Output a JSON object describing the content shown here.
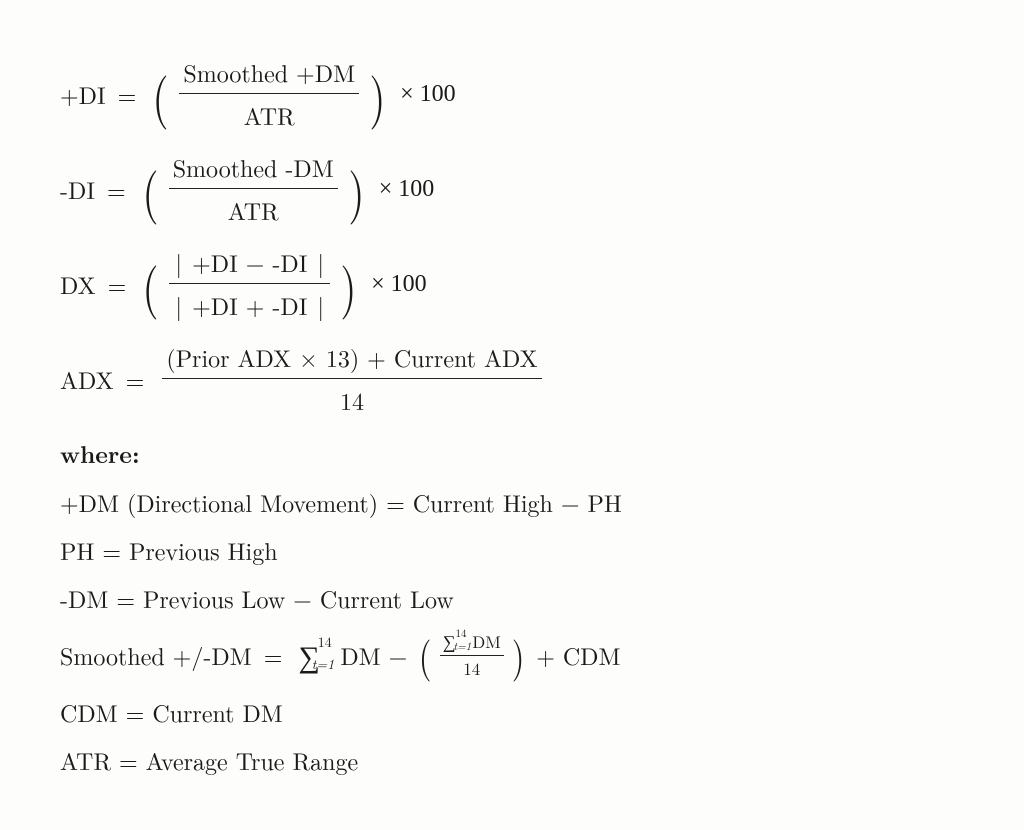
{
  "eq1": {
    "lhs": "+DI",
    "num": "Smoothed +DM",
    "den": "ATR",
    "tail": "× 100"
  },
  "eq2": {
    "lhs": "-DI",
    "num": "Smoothed -DM",
    "den": "ATR",
    "tail": "× 100"
  },
  "eq3": {
    "lhs": "DX",
    "num_inner": "+DI − -DI",
    "den_inner": "+DI + -DI",
    "tail": "× 100"
  },
  "eq4": {
    "lhs": "ADX",
    "num": "(Prior ADX × 13) + Current ADX",
    "den": "14"
  },
  "where": "where:",
  "def1": "+DM (Directional Movement) = Current High − PH",
  "def2": "PH = Previous High",
  "def3": "-DM = Previous Low − Current Low",
  "smoothed": {
    "lhs": "Smoothed +/-DM",
    "sum_upper": "14",
    "sum_lower": "t=1",
    "sum_body": "DM",
    "minus": "−",
    "small_sum_upper": "14",
    "small_sum_lower": "t=1",
    "small_sum_body": "DM",
    "small_den": "14",
    "plus_cdm": "+ CDM"
  },
  "def5": "CDM = Current DM",
  "def6": "ATR = Average True Range",
  "glyphs": {
    "eq": "=",
    "sigma": "∑",
    "lparen": "(",
    "rparen": ")",
    "bar": "|"
  }
}
